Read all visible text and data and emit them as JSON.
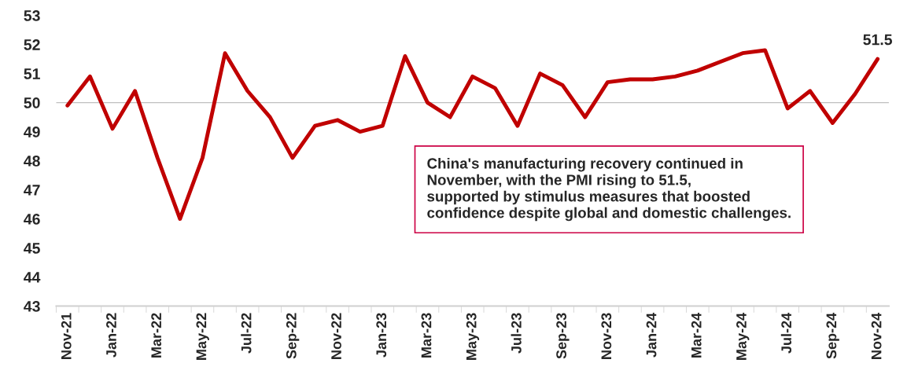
{
  "chart_data": {
    "type": "line",
    "categories": [
      "Nov-21",
      null,
      "Jan-22",
      null,
      "Mar-22",
      null,
      "May-22",
      null,
      "Jul-22",
      null,
      "Sep-22",
      null,
      "Nov-22",
      null,
      "Jan-23",
      null,
      "Mar-23",
      null,
      "May-23",
      null,
      "Jul-23",
      null,
      "Sep-23",
      null,
      "Nov-23",
      null,
      "Jan-24",
      null,
      "Mar-24",
      null,
      "May-24",
      null,
      "Jul-24",
      null,
      "Sep-24",
      null,
      "Nov-24"
    ],
    "series": [
      {
        "color": "#c00000",
        "values": [
          49.9,
          50.9,
          49.1,
          50.4,
          48.1,
          46.0,
          48.1,
          51.7,
          50.4,
          49.5,
          48.1,
          49.2,
          49.4,
          49.0,
          49.2,
          51.6,
          50.0,
          49.5,
          50.9,
          50.5,
          49.2,
          51.0,
          50.6,
          49.5,
          50.7,
          50.8,
          50.8,
          50.9,
          51.1,
          51.4,
          51.7,
          51.8,
          49.8,
          50.4,
          49.3,
          50.3,
          51.5
        ],
        "value_labels": [
          null,
          null,
          null,
          null,
          null,
          null,
          null,
          null,
          null,
          null,
          null,
          null,
          null,
          null,
          null,
          null,
          null,
          null,
          null,
          null,
          null,
          null,
          null,
          null,
          null,
          null,
          null,
          null,
          null,
          null,
          null,
          null,
          null,
          null,
          null,
          null,
          "51.5"
        ]
      }
    ],
    "ylim": [
      43,
      53
    ],
    "yticks": [
      43,
      44,
      45,
      46,
      47,
      48,
      49,
      50,
      51,
      52,
      53
    ],
    "ref_lines": [
      {
        "axis": "y",
        "value": 50,
        "color": "#c0c0c0"
      }
    ],
    "annotations": [
      "China's manufacturing recovery continued in\nNovember, with the PMI rising to 51.5,\nsupported by stimulus measures that boosted\nconfidence despite global and domestic challenges."
    ],
    "grid": false,
    "legend": false,
    "marker": "none",
    "line_style": "solid"
  }
}
